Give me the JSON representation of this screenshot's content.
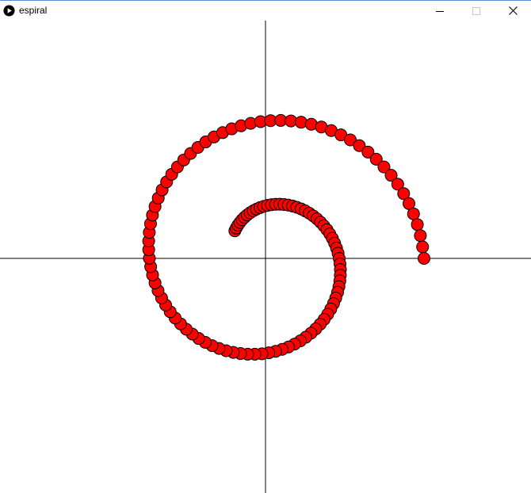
{
  "window": {
    "title": "espiral",
    "app_icon": "play-circle-icon",
    "controls": {
      "minimize_icon": "minimize-icon",
      "maximize_icon": "maximize-icon",
      "close_icon": "close-icon"
    }
  },
  "sketch": {
    "background": "#ffffff",
    "axis_color": "#000000",
    "dot_fill": "#ff0000",
    "dot_stroke": "#000000",
    "spiral": {
      "dot_count": 120,
      "angle_start_deg": 222,
      "angle_end_deg": 720,
      "radius_start": 52,
      "radius_end": 200
    }
  }
}
